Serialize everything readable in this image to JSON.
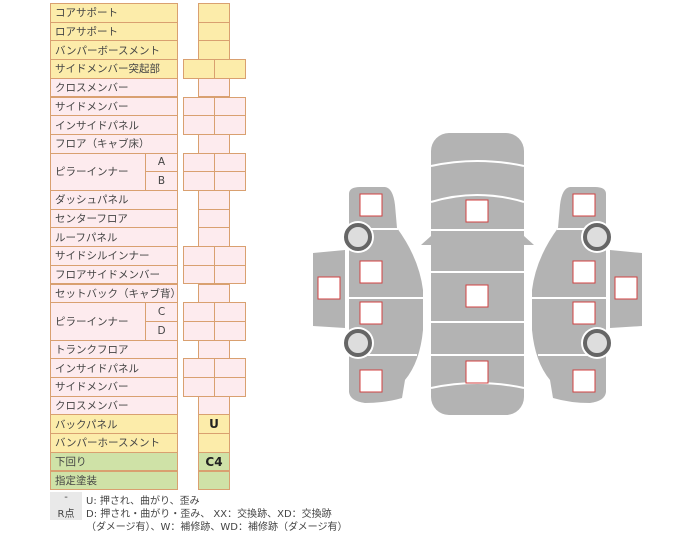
{
  "rows": [
    {
      "label": "コアサポート",
      "type": "single",
      "color": "yellow",
      "value": ""
    },
    {
      "label": "ロアサポート",
      "type": "single",
      "color": "yellow",
      "value": ""
    },
    {
      "label": "バンパーボースメント",
      "type": "single",
      "color": "yellow",
      "value": ""
    },
    {
      "label": "サイドメンバー突起部",
      "type": "double",
      "color": "yellow",
      "value": ""
    },
    {
      "label": "クロスメンバー",
      "type": "single",
      "color": "pink",
      "value": ""
    },
    {
      "label": "サイドメンバー",
      "type": "double",
      "color": "pink",
      "value": ""
    },
    {
      "label": "インサイドパネル",
      "type": "double",
      "color": "pink",
      "value": ""
    },
    {
      "label": "フロア（キャブ床）",
      "type": "single",
      "color": "pink",
      "value": ""
    },
    {
      "label": "ピラーインナー",
      "sub": "A",
      "type": "double",
      "color": "pink",
      "value": "",
      "group_start": true
    },
    {
      "label": "",
      "sub": "B",
      "type": "double",
      "color": "pink",
      "value": "",
      "group_cont": true
    },
    {
      "label": "ダッシュパネル",
      "type": "single",
      "color": "pink",
      "value": ""
    },
    {
      "label": "センターフロア",
      "type": "single",
      "color": "pink",
      "value": ""
    },
    {
      "label": "ルーフパネル",
      "type": "single",
      "color": "pink",
      "value": ""
    },
    {
      "label": "サイドシルインナー",
      "type": "double",
      "color": "pink",
      "value": ""
    },
    {
      "label": "フロアサイドメンバー",
      "type": "double",
      "color": "pink",
      "value": ""
    },
    {
      "label": "セットバック（キャブ背）",
      "type": "single",
      "color": "pink",
      "value": ""
    },
    {
      "label": "ピラーインナー",
      "sub": "C",
      "type": "double",
      "color": "pink",
      "value": "",
      "group_start": true
    },
    {
      "label": "",
      "sub": "D",
      "type": "double",
      "color": "pink",
      "value": "",
      "group_cont": true
    },
    {
      "label": "トランクフロア",
      "type": "single",
      "color": "pink",
      "value": ""
    },
    {
      "label": "インサイドパネル",
      "type": "double",
      "color": "pink",
      "value": ""
    },
    {
      "label": "サイドメンバー",
      "type": "double",
      "color": "pink",
      "value": ""
    },
    {
      "label": "クロスメンバー",
      "type": "single",
      "color": "pink",
      "value": ""
    },
    {
      "label": "バックパネル",
      "type": "single",
      "color": "yellow",
      "value": "U"
    },
    {
      "label": "バンパーホースメント",
      "type": "single",
      "color": "yellow",
      "value": ""
    },
    {
      "label": "下回り",
      "type": "single",
      "color": "green",
      "value": "C4"
    },
    {
      "label": "指定塗装",
      "type": "single",
      "color": "green",
      "value": ""
    }
  ],
  "legend": [
    {
      "key": "-",
      "text": "U: 押され、曲がり、歪み"
    },
    {
      "key": "R点",
      "text": "D: 押され・曲がり・歪み、 XX：交換跡、XD：交換跡"
    },
    {
      "key": "",
      "text": "（ダメージ有）、W：補修跡、WD：補修跡（ダメージ有）"
    }
  ],
  "colors": {
    "yellow": "#fcecaa",
    "pink": "#fdebee",
    "green": "#cfe2a7",
    "border": "#d9a070",
    "body": "#b3b3b3",
    "marker": "#d04040"
  }
}
